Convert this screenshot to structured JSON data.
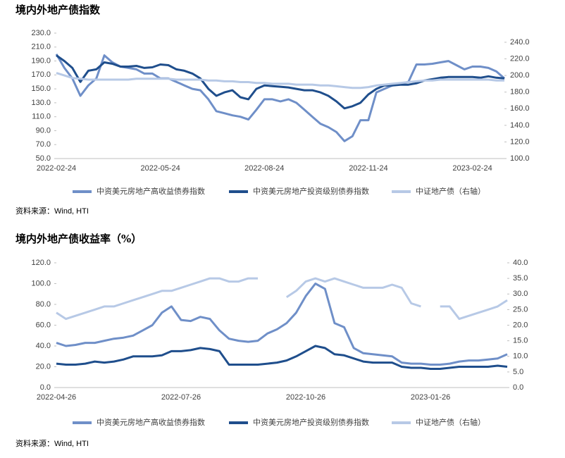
{
  "chart_data": [
    {
      "type": "line",
      "title": "境内外地产债指数",
      "source": "资料来源：Wind, HTI",
      "legend": "bottom",
      "categories": [
        "2022-02-24",
        null,
        null,
        null,
        null,
        null,
        null,
        null,
        null,
        null,
        null,
        null,
        null,
        "2022-05-24",
        null,
        null,
        null,
        null,
        null,
        null,
        null,
        null,
        null,
        null,
        null,
        null,
        "2022-08-24",
        null,
        null,
        null,
        null,
        null,
        null,
        null,
        null,
        null,
        null,
        null,
        null,
        "2022-11-24",
        null,
        null,
        null,
        null,
        null,
        null,
        null,
        null,
        null,
        null,
        null,
        null,
        "2023-02-24",
        null,
        null,
        null,
        null
      ],
      "ylim": [
        50,
        230
      ],
      "yticks": [
        {
          "value": 50,
          "label": "50.0"
        },
        {
          "value": 70,
          "label": "70.0"
        },
        {
          "value": 90,
          "label": "90.0"
        },
        {
          "value": 110,
          "label": "110.0"
        },
        {
          "value": 130,
          "label": "130.0"
        },
        {
          "value": 150,
          "label": "150.0"
        },
        {
          "value": 170,
          "label": "170.0"
        },
        {
          "value": 190,
          "label": "190.0"
        },
        {
          "value": 210,
          "label": "210.0"
        },
        {
          "value": 230,
          "label": "230.0"
        }
      ],
      "y2lim": [
        100,
        251
      ],
      "y2ticks": [
        {
          "value": 100,
          "label": "100.0"
        },
        {
          "value": 120,
          "label": "120.0"
        },
        {
          "value": 140,
          "label": "140.0"
        },
        {
          "value": 160,
          "label": "160.0"
        },
        {
          "value": 180,
          "label": "180.0"
        },
        {
          "value": 200,
          "label": "200.0"
        },
        {
          "value": 220,
          "label": "220.0"
        },
        {
          "value": 240,
          "label": "240.0"
        }
      ],
      "series": [
        {
          "name": "中资美元房地产高收益债券指数",
          "color": "#6f8fc8",
          "values": [
            200,
            180,
            165,
            140,
            155,
            165,
            198,
            188,
            182,
            180,
            178,
            172,
            172,
            165,
            165,
            160,
            155,
            150,
            148,
            135,
            118,
            115,
            112,
            110,
            106,
            120,
            135,
            135,
            132,
            135,
            130,
            120,
            110,
            100,
            95,
            88,
            75,
            82,
            105,
            105,
            145,
            150,
            155,
            157,
            160,
            185,
            185,
            186,
            188,
            190,
            184,
            178,
            182,
            182,
            180,
            175,
            165
          ]
        },
        {
          "name": "中资美元房地产投资级别债券指数",
          "color": "#1f4e8c",
          "values": [
            198,
            190,
            180,
            160,
            176,
            178,
            188,
            186,
            182,
            182,
            183,
            180,
            181,
            185,
            184,
            178,
            176,
            172,
            165,
            150,
            140,
            145,
            148,
            138,
            135,
            150,
            155,
            154,
            153,
            152,
            150,
            148,
            148,
            145,
            140,
            132,
            122,
            125,
            130,
            142,
            150,
            155,
            155,
            156,
            156,
            158,
            162,
            164,
            166,
            167,
            167,
            167,
            167,
            166,
            168,
            166,
            165
          ]
        },
        {
          "name": "中证地产债（右轴）",
          "color": "#b7c9e6",
          "axis": "y2",
          "values": [
            203,
            200,
            197,
            196,
            195,
            195,
            195,
            195,
            195,
            195,
            196,
            196,
            196,
            196,
            196,
            195,
            195,
            195,
            195,
            194,
            194,
            193,
            193,
            192,
            192,
            191,
            191,
            190,
            190,
            190,
            189,
            189,
            189,
            188,
            188,
            187,
            186,
            185,
            185,
            186,
            188,
            189,
            190,
            191,
            192,
            193,
            194,
            194,
            195,
            195,
            195,
            195,
            195,
            195,
            195,
            194,
            194
          ]
        }
      ]
    },
    {
      "type": "line",
      "title": "境内外地产债收益率（%）",
      "source": "资料来源：Wind, HTI",
      "legend": "bottom",
      "categories": [
        "2022-04-26",
        null,
        null,
        null,
        null,
        null,
        null,
        null,
        null,
        null,
        null,
        null,
        null,
        "2022-07-26",
        null,
        null,
        null,
        null,
        null,
        null,
        null,
        null,
        null,
        null,
        null,
        null,
        "2022-10-26",
        null,
        null,
        null,
        null,
        null,
        null,
        null,
        null,
        null,
        null,
        null,
        null,
        "2023-01-26",
        null,
        null,
        null,
        null,
        null,
        null,
        null,
        null
      ],
      "ylim": [
        0,
        120
      ],
      "yticks": [
        {
          "value": 0,
          "label": "0.0"
        },
        {
          "value": 20,
          "label": "20.0"
        },
        {
          "value": 40,
          "label": "40.0"
        },
        {
          "value": 60,
          "label": "60.0"
        },
        {
          "value": 80,
          "label": "80.0"
        },
        {
          "value": 100,
          "label": "100.0"
        },
        {
          "value": 120,
          "label": "120.0"
        }
      ],
      "y2lim": [
        0,
        40
      ],
      "y2ticks": [
        {
          "value": 0,
          "label": "0.0"
        },
        {
          "value": 5,
          "label": "5.0"
        },
        {
          "value": 10,
          "label": "10.0"
        },
        {
          "value": 15,
          "label": "15.0"
        },
        {
          "value": 20,
          "label": "20.0"
        },
        {
          "value": 25,
          "label": "25.0"
        },
        {
          "value": 30,
          "label": "30.0"
        },
        {
          "value": 35,
          "label": "35.0"
        },
        {
          "value": 40,
          "label": "40.0"
        }
      ],
      "series": [
        {
          "name": "中资美元房地产高收益债券指数",
          "color": "#6f8fc8",
          "values": [
            43,
            40,
            41,
            43,
            43,
            45,
            47,
            48,
            50,
            55,
            60,
            72,
            78,
            65,
            64,
            68,
            66,
            55,
            47,
            45,
            44,
            45,
            52,
            56,
            62,
            72,
            88,
            100,
            95,
            62,
            58,
            38,
            33,
            32,
            31,
            30,
            24,
            23,
            23,
            22,
            22,
            23,
            25,
            26,
            26,
            27,
            28,
            32
          ]
        },
        {
          "name": "中资美元房地产投资级别债券指数",
          "color": "#1f4e8c",
          "values": [
            23,
            22,
            22,
            23,
            25,
            24,
            25,
            27,
            30,
            30,
            30,
            31,
            35,
            35,
            36,
            38,
            37,
            35,
            22,
            22,
            22,
            22,
            23,
            24,
            26,
            30,
            35,
            40,
            38,
            32,
            31,
            28,
            25,
            24,
            24,
            24,
            20,
            19,
            19,
            18,
            18,
            19,
            20,
            20,
            20,
            20,
            21,
            20
          ]
        },
        {
          "name": "中证地产债（右轴）",
          "color": "#b7c9e6",
          "axis": "y2",
          "values": [
            24,
            22,
            23,
            24,
            25,
            26,
            26,
            27,
            28,
            29,
            30,
            31,
            31,
            32,
            33,
            34,
            35,
            35,
            34,
            34,
            35,
            35,
            null,
            null,
            29,
            31,
            34,
            35,
            34,
            35,
            34,
            33,
            32,
            32,
            32,
            33,
            32,
            27,
            26,
            null,
            26,
            26,
            22,
            23,
            24,
            25,
            26,
            28
          ]
        }
      ]
    }
  ]
}
